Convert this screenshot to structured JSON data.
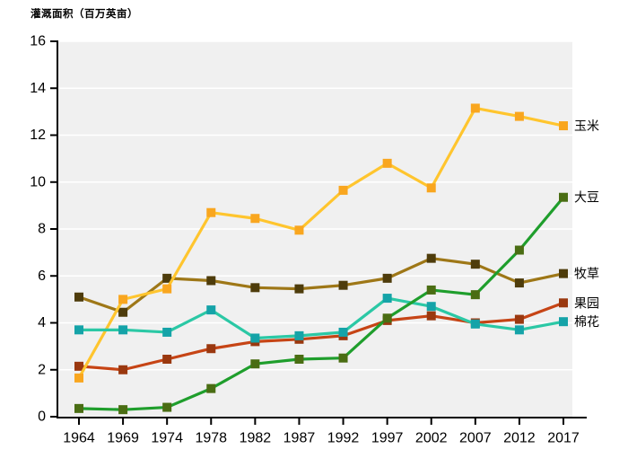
{
  "chart_data": {
    "type": "line",
    "title": "灌溉面积（百万英亩）",
    "xlabel": "",
    "ylabel": "灌溉面积（百万英亩）",
    "x": [
      1964,
      1969,
      1974,
      1978,
      1982,
      1987,
      1992,
      1997,
      2002,
      2007,
      2012,
      2017
    ],
    "ylim": [
      0,
      16
    ],
    "ytick_step": 2,
    "grid": "horizontal white gridlines on light gray panel",
    "legend_position": "labels at right end of each line",
    "series": [
      {
        "key": "corn",
        "name": "玉米",
        "line_color": "#FFC52E",
        "marker_color": "#F9A61F",
        "values": [
          1.65,
          5.0,
          5.45,
          8.7,
          8.45,
          7.95,
          9.65,
          10.8,
          9.75,
          13.15,
          12.8,
          12.4
        ]
      },
      {
        "key": "soybean",
        "name": "大豆",
        "line_color": "#1F9E2C",
        "marker_color": "#4A6D13",
        "values": [
          0.35,
          0.3,
          0.4,
          1.2,
          2.25,
          2.45,
          2.5,
          4.2,
          5.4,
          5.2,
          7.1,
          9.35
        ]
      },
      {
        "key": "forage",
        "name": "牧草",
        "line_color": "#9E7717",
        "marker_color": "#4E3C0B",
        "values": [
          5.1,
          4.45,
          5.9,
          5.8,
          5.5,
          5.45,
          5.6,
          5.9,
          6.75,
          6.5,
          5.7,
          6.1
        ]
      },
      {
        "key": "orchard",
        "name": "果园",
        "line_color": "#C64415",
        "marker_color": "#9A380F",
        "values": [
          2.15,
          2.0,
          2.45,
          2.9,
          3.2,
          3.3,
          3.45,
          4.1,
          4.3,
          4.0,
          4.15,
          4.85
        ]
      },
      {
        "key": "cotton",
        "name": "棉花",
        "line_color": "#2BC8A5",
        "marker_color": "#15A3A8",
        "values": [
          3.7,
          3.7,
          3.6,
          4.55,
          3.35,
          3.45,
          3.6,
          5.05,
          4.7,
          3.95,
          3.7,
          4.05
        ]
      }
    ],
    "draw_order": [
      "forage",
      "orchard",
      "corn",
      "cotton",
      "soybean"
    ],
    "colors": {
      "panel_bg": "#F0F0F0",
      "gridline": "#FFFFFF",
      "axis": "#000000",
      "text": "#000000",
      "page_bg": "#FFFFFF"
    }
  }
}
